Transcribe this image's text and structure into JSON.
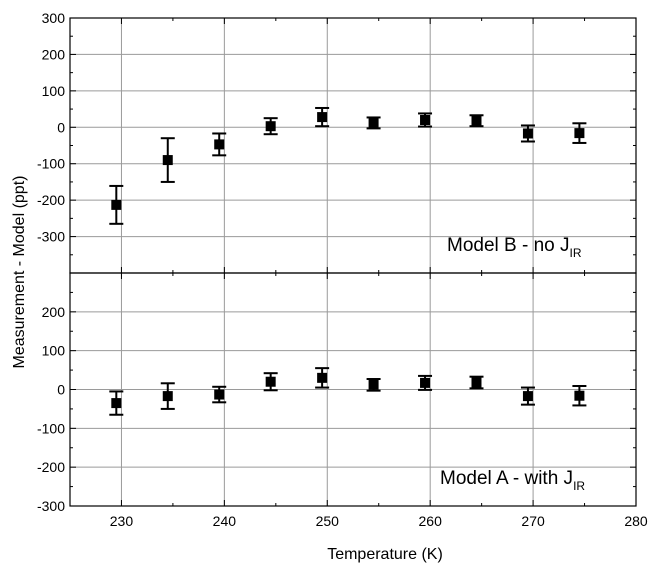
{
  "chart_data": {
    "type": "scatter",
    "xlabel": "Temperature (K)",
    "ylabel": "Measurement - Model (ppt)",
    "xlim": [
      225,
      280
    ],
    "x_ticks": [
      230,
      240,
      250,
      260,
      270,
      280
    ],
    "grid": true,
    "panels": [
      {
        "id": "top",
        "label_main": "Model B - no J",
        "label_sub": "IR",
        "label_position": "bottom-right",
        "ylim": [
          -400,
          300
        ],
        "y_ticks": [
          300,
          200,
          100,
          0,
          -100,
          -200,
          -300
        ],
        "scatter": [],
        "binned_means": [
          {
            "x": 229.5,
            "y": -213,
            "err": 52
          },
          {
            "x": 234.5,
            "y": -90,
            "err": 60
          },
          {
            "x": 239.5,
            "y": -47,
            "err": 30
          },
          {
            "x": 244.5,
            "y": 3,
            "err": 22
          },
          {
            "x": 249.5,
            "y": 28,
            "err": 25
          },
          {
            "x": 254.5,
            "y": 12,
            "err": 15
          },
          {
            "x": 259.5,
            "y": 20,
            "err": 18
          },
          {
            "x": 264.5,
            "y": 18,
            "err": 15
          },
          {
            "x": 269.5,
            "y": -17,
            "err": 22
          },
          {
            "x": 274.5,
            "y": -16,
            "err": 27
          }
        ]
      },
      {
        "id": "bottom",
        "label_main": "Model A - with J",
        "label_sub": "IR",
        "label_position": "bottom-right",
        "ylim": [
          -300,
          300
        ],
        "y_ticks": [
          200,
          100,
          0,
          -100,
          -200,
          -300
        ],
        "scatter": [],
        "binned_means": [
          {
            "x": 229.5,
            "y": -35,
            "err": 30
          },
          {
            "x": 234.5,
            "y": -17,
            "err": 33
          },
          {
            "x": 239.5,
            "y": -13,
            "err": 20
          },
          {
            "x": 244.5,
            "y": 20,
            "err": 22
          },
          {
            "x": 249.5,
            "y": 30,
            "err": 25
          },
          {
            "x": 254.5,
            "y": 12,
            "err": 15
          },
          {
            "x": 259.5,
            "y": 17,
            "err": 18
          },
          {
            "x": 264.5,
            "y": 18,
            "err": 15
          },
          {
            "x": 269.5,
            "y": -17,
            "err": 22
          },
          {
            "x": 274.5,
            "y": -16,
            "err": 25
          }
        ]
      }
    ],
    "colors": {
      "scatter": "#8c8c8c",
      "means": "#000000",
      "grid": "#9a9a9a"
    }
  }
}
